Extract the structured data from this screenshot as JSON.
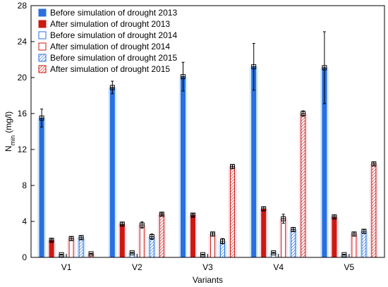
{
  "chart_data": {
    "type": "bar",
    "title": "",
    "xlabel": "Variants",
    "ylabel_main": "N",
    "ylabel_sub": "min",
    "ylabel_unit": " (mg/l)",
    "ylim": [
      0,
      28
    ],
    "yticks": [
      0,
      4,
      8,
      12,
      16,
      20,
      24,
      28
    ],
    "grid": false,
    "legend_position": "top-left",
    "categories": [
      "V1",
      "V2",
      "V3",
      "V4",
      "V5"
    ],
    "series": [
      {
        "name": "Before simulation of drought 2013",
        "style": "solid",
        "color": "#2a6fe0",
        "values": [
          15.5,
          18.9,
          20.1,
          21.2,
          21.1
        ],
        "errors": [
          1.0,
          0.7,
          1.6,
          2.6,
          4.0
        ]
      },
      {
        "name": "After simulation of drought 2013",
        "style": "solid",
        "color": "#cc1a12",
        "values": [
          1.9,
          3.7,
          4.7,
          5.4,
          4.5
        ],
        "errors": [
          0.15,
          0.2,
          0.15,
          0.2,
          0.2
        ]
      },
      {
        "name": "Before simulation of drought 2014",
        "style": "open",
        "color": "#2a6fe0",
        "values": [
          0.3,
          0.5,
          0.3,
          0.5,
          0.3
        ],
        "errors": [
          0.05,
          0.05,
          0.05,
          0.05,
          0.05
        ]
      },
      {
        "name": "After simulation of drought 2014",
        "style": "open",
        "color": "#cc1a12",
        "values": [
          2.1,
          3.6,
          2.6,
          4.3,
          2.6
        ],
        "errors": [
          0.2,
          0.35,
          0.2,
          0.5,
          0.2
        ]
      },
      {
        "name": "Before simulation of drought 2015",
        "style": "hatched",
        "color": "#2a6fe0",
        "values": [
          2.2,
          2.3,
          1.8,
          3.1,
          2.9
        ],
        "errors": [
          0.2,
          0.3,
          0.3,
          0.2,
          0.2
        ]
      },
      {
        "name": "After simulation of drought 2015",
        "style": "hatched",
        "color": "#cc1a12",
        "values": [
          0.4,
          4.8,
          10.1,
          16.0,
          10.4
        ],
        "errors": [
          0.05,
          0.15,
          0.2,
          0.3,
          0.2
        ]
      }
    ]
  }
}
